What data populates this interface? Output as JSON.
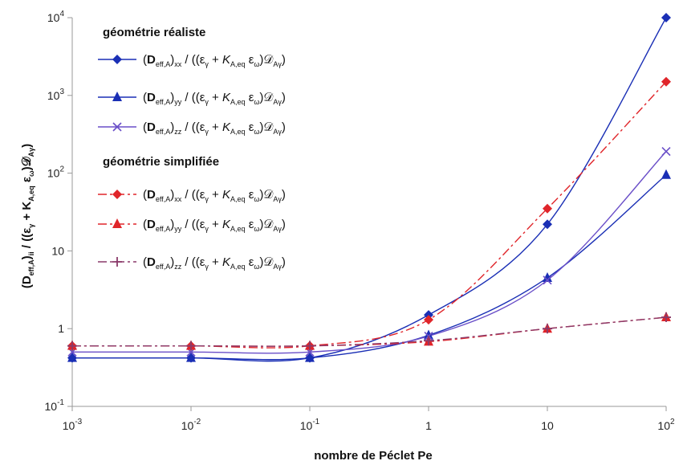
{
  "chart_data": {
    "type": "line",
    "xscale": "log",
    "yscale": "log",
    "xlim": [
      0.001,
      100
    ],
    "ylim": [
      0.1,
      10000
    ],
    "x": [
      0.001,
      0.01,
      0.1,
      1,
      10,
      100
    ],
    "xticks": [
      "10-3",
      "10-2",
      "10-1",
      "1",
      "10",
      "102"
    ],
    "yticks": [
      "10-1",
      "1",
      "10",
      "102",
      "103",
      "104"
    ],
    "xlabel": "nombre de Péclet Pe",
    "ylabel": "(Deff,A)ii / ((εγ + KA,eq εω)𝒟Aγ)",
    "grid": "none",
    "legend_position": "top-left",
    "legend_groups": [
      "géométrie réaliste",
      "géométrie simplifiée"
    ],
    "series": [
      {
        "name": "(Deff,A)xx / ((εγ + KA,eq εω)𝒟Aγ)",
        "group": 0,
        "values": [
          0.42,
          0.42,
          0.42,
          1.5,
          22,
          10000
        ],
        "color": "#1a2fb5",
        "marker": "diamond",
        "dash": "solid"
      },
      {
        "name": "(Deff,A)yy / ((εγ + KA,eq εω)𝒟Aγ)",
        "group": 0,
        "values": [
          0.42,
          0.42,
          0.42,
          0.82,
          4.5,
          95
        ],
        "color": "#1a2fb5",
        "marker": "triangle",
        "dash": "solid"
      },
      {
        "name": "(Deff,A)zz / ((εγ + KA,eq εω)𝒟Aγ)",
        "group": 0,
        "values": [
          0.5,
          0.5,
          0.5,
          0.8,
          4.2,
          190
        ],
        "color": "#6a4fc8",
        "marker": "x",
        "dash": "solid"
      },
      {
        "name": "(Deff,A)xx / ((εγ + KA,eq εω)𝒟Aγ)",
        "group": 1,
        "values": [
          0.6,
          0.6,
          0.6,
          1.3,
          35,
          1500
        ],
        "color": "#e0252a",
        "marker": "diamond",
        "dash": "dashed"
      },
      {
        "name": "(Deff,A)yy / ((εγ + KA,eq εω)𝒟Aγ)",
        "group": 1,
        "values": [
          0.6,
          0.6,
          0.6,
          0.68,
          1.0,
          1.4
        ],
        "color": "#e0252a",
        "marker": "triangle",
        "dash": "dashed"
      },
      {
        "name": "(Deff,A)zz / ((εγ + KA,eq εω)𝒟Aγ)",
        "group": 1,
        "values": [
          0.6,
          0.6,
          0.6,
          0.7,
          1.0,
          1.4
        ],
        "color": "#8a3a6a",
        "marker": "plus",
        "dash": "dashed"
      }
    ]
  }
}
